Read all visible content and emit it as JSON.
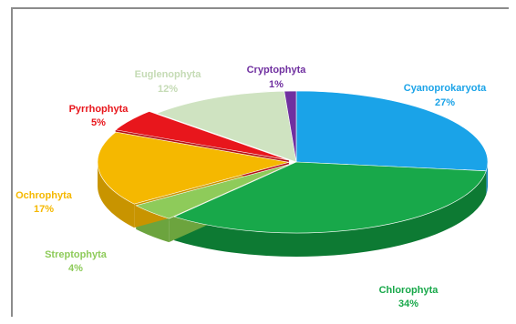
{
  "chart_data": {
    "type": "pie",
    "style": "3d-exploded",
    "title": "",
    "legend": "none",
    "slices": [
      {
        "name": "Cyanoprokaryota",
        "value": 27,
        "label": "Cyanoprokaryota",
        "pct": "27%",
        "color": "#1aa3e8",
        "side": "#1180ba"
      },
      {
        "name": "Chlorophyta",
        "value": 34,
        "label": "Chlorophyta",
        "pct": "34%",
        "color": "#18a84a",
        "side": "#0d7a33"
      },
      {
        "name": "Streptophyta",
        "value": 4,
        "label": "Streptophyta",
        "pct": "4%",
        "color": "#8ecb5a",
        "side": "#6ca43e"
      },
      {
        "name": "Ochrophyta",
        "value": 17,
        "label": "Ochrophyta",
        "pct": "17%",
        "color": "#f5b800",
        "side": "#c89400"
      },
      {
        "name": "Pyrrhophyta",
        "value": 5,
        "label": "Pyrrhophyta",
        "pct": "5%",
        "color": "#e8161c",
        "side": "#b31015"
      },
      {
        "name": "Euglenophyta",
        "value": 12,
        "label": "Euglenophyta",
        "pct": "12%",
        "color": "#cfe3c1",
        "side": "#a9c39a"
      },
      {
        "name": "Cryptophyta",
        "value": 1,
        "label": "Cryptophyta",
        "pct": "1%",
        "color": "#7030a0",
        "side": "#552380"
      }
    ],
    "label_colors": {
      "Cyanoprokaryota": "#1aa3e8",
      "Chlorophyta": "#18a84a",
      "Streptophyta": "#8ecb5a",
      "Ochrophyta": "#f5b800",
      "Pyrrhophyta": "#e8161c",
      "Euglenophyta": "#c5dbb5",
      "Cryptophyta": "#7030a0"
    }
  }
}
